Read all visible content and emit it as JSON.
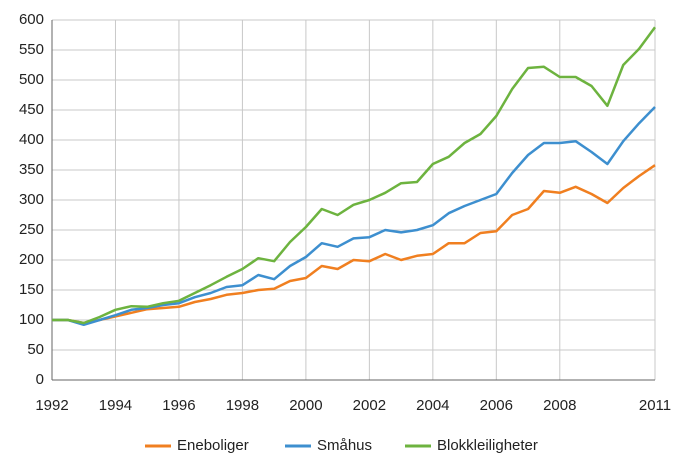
{
  "chart_data": {
    "type": "line",
    "x": [
      1992,
      1992.5,
      1993,
      1993.5,
      1994,
      1994.5,
      1995,
      1995.5,
      1996,
      1996.5,
      1997,
      1997.5,
      1998,
      1998.5,
      1999,
      1999.5,
      2000,
      2000.5,
      2001,
      2001.5,
      2002,
      2002.5,
      2003,
      2003.5,
      2004,
      2004.5,
      2005,
      2005.5,
      2006,
      2006.5,
      2007,
      2007.5,
      2008,
      2008.5,
      2009,
      2009.5,
      2010,
      2010.5,
      2011
    ],
    "series": [
      {
        "name": "Eneboliger",
        "color": "#f07f20",
        "values": [
          100,
          100,
          95,
          100,
          106,
          112,
          118,
          120,
          122,
          130,
          135,
          142,
          145,
          150,
          152,
          165,
          170,
          190,
          185,
          200,
          198,
          210,
          200,
          207,
          210,
          228,
          228,
          245,
          248,
          275,
          285,
          315,
          312,
          322,
          310,
          295,
          320,
          340,
          358
        ]
      },
      {
        "name": "Småhus",
        "color": "#3d8fcf",
        "values": [
          100,
          100,
          92,
          100,
          108,
          117,
          120,
          125,
          128,
          138,
          145,
          155,
          158,
          175,
          168,
          190,
          205,
          228,
          222,
          236,
          238,
          250,
          246,
          250,
          258,
          278,
          290,
          300,
          310,
          345,
          375,
          395,
          395,
          398,
          380,
          360,
          398,
          428,
          455
        ]
      },
      {
        "name": "Blokkleiligheter",
        "color": "#6db33f",
        "values": [
          100,
          100,
          95,
          105,
          117,
          123,
          122,
          128,
          132,
          145,
          158,
          172,
          185,
          203,
          198,
          230,
          255,
          285,
          275,
          292,
          300,
          312,
          328,
          330,
          360,
          372,
          395,
          410,
          440,
          485,
          520,
          522,
          505,
          505,
          490,
          457,
          525,
          552,
          588
        ]
      }
    ],
    "xlim": [
      1992,
      2011
    ],
    "xticks": [
      1992,
      1994,
      1996,
      1998,
      2000,
      2002,
      2004,
      2006,
      2008,
      2011
    ],
    "ylim": [
      0,
      600
    ],
    "yticks": [
      0,
      50,
      100,
      150,
      200,
      250,
      300,
      350,
      400,
      450,
      500,
      550,
      600
    ],
    "grid": true,
    "legend": "bottom"
  }
}
